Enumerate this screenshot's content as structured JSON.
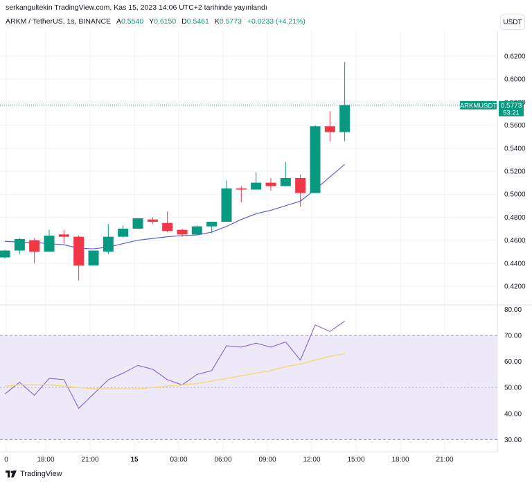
{
  "header": {
    "attribution": "serkangultekin TradingView.com, Kas 15, 2023 14:06 UTC+2 tarihinde yayınlandı",
    "symbol": "ARKM / TetherUS, 1s, BINANCE",
    "ohlc": [
      {
        "key": "A",
        "value": "0.5540"
      },
      {
        "key": "Y",
        "value": "0.6150"
      },
      {
        "key": "D",
        "value": "0.5461"
      },
      {
        "key": "K",
        "value": "0.5773"
      }
    ],
    "change": "+0.0233 (+4.21%)",
    "currency": "USDT"
  },
  "footer": {
    "logo_text": "TradingView"
  },
  "colors": {
    "up": "#089981",
    "down": "#f23645",
    "ma": "#5b5ed6",
    "rsi": "#7e57c2",
    "rsi_ma": "#f7d774",
    "rsi_band": "#ede9f8"
  },
  "chart_data": [
    {
      "type": "candlestick",
      "x_tick_labels": [
        "0",
        "18:00",
        "21:00",
        "15",
        "03:00",
        "06:00",
        "09:00",
        "12:00",
        "15:00",
        "18:00",
        "21:00"
      ],
      "y_tick_labels": [
        "0.6200",
        "0.6000",
        "0.5800",
        "0.5600",
        "0.5400",
        "0.5200",
        "0.5000",
        "0.4800",
        "0.4600",
        "0.4400",
        "0.4200"
      ],
      "ylim": [
        0.412,
        0.63
      ],
      "last_price_label": {
        "symbol": "ARKMUSDT",
        "price": "0.5773",
        "countdown": "53:21",
        "value": 0.5773
      },
      "candles": [
        {
          "o": 0.445,
          "h": 0.452,
          "l": 0.444,
          "c": 0.451
        },
        {
          "o": 0.451,
          "h": 0.462,
          "l": 0.448,
          "c": 0.461
        },
        {
          "o": 0.46,
          "h": 0.462,
          "l": 0.44,
          "c": 0.45
        },
        {
          "o": 0.45,
          "h": 0.469,
          "l": 0.45,
          "c": 0.464
        },
        {
          "o": 0.465,
          "h": 0.469,
          "l": 0.457,
          "c": 0.463
        },
        {
          "o": 0.463,
          "h": 0.464,
          "l": 0.425,
          "c": 0.438
        },
        {
          "o": 0.438,
          "h": 0.451,
          "l": 0.438,
          "c": 0.451
        },
        {
          "o": 0.45,
          "h": 0.474,
          "l": 0.448,
          "c": 0.463
        },
        {
          "o": 0.463,
          "h": 0.473,
          "l": 0.462,
          "c": 0.47
        },
        {
          "o": 0.47,
          "h": 0.479,
          "l": 0.47,
          "c": 0.479
        },
        {
          "o": 0.478,
          "h": 0.48,
          "l": 0.474,
          "c": 0.476
        },
        {
          "o": 0.475,
          "h": 0.485,
          "l": 0.467,
          "c": 0.468
        },
        {
          "o": 0.469,
          "h": 0.47,
          "l": 0.463,
          "c": 0.465
        },
        {
          "o": 0.465,
          "h": 0.473,
          "l": 0.465,
          "c": 0.472
        },
        {
          "o": 0.472,
          "h": 0.476,
          "l": 0.466,
          "c": 0.476
        },
        {
          "o": 0.476,
          "h": 0.512,
          "l": 0.476,
          "c": 0.505
        },
        {
          "o": 0.505,
          "h": 0.507,
          "l": 0.493,
          "c": 0.504
        },
        {
          "o": 0.504,
          "h": 0.519,
          "l": 0.504,
          "c": 0.51
        },
        {
          "o": 0.51,
          "h": 0.514,
          "l": 0.503,
          "c": 0.507
        },
        {
          "o": 0.507,
          "h": 0.528,
          "l": 0.507,
          "c": 0.514
        },
        {
          "o": 0.514,
          "h": 0.517,
          "l": 0.489,
          "c": 0.501
        },
        {
          "o": 0.501,
          "h": 0.56,
          "l": 0.501,
          "c": 0.559
        },
        {
          "o": 0.559,
          "h": 0.572,
          "l": 0.546,
          "c": 0.554
        },
        {
          "o": 0.554,
          "h": 0.615,
          "l": 0.5461,
          "c": 0.5773
        }
      ],
      "moving_average": [
        0.459,
        0.4585,
        0.458,
        0.457,
        0.456,
        0.453,
        0.4525,
        0.454,
        0.457,
        0.46,
        0.4615,
        0.463,
        0.464,
        0.4645,
        0.467,
        0.472,
        0.478,
        0.483,
        0.486,
        0.49,
        0.494,
        0.504,
        0.515,
        0.526
      ],
      "grid": true
    },
    {
      "type": "line",
      "name": "RSI",
      "y_tick_labels": [
        "80.00",
        "70.00",
        "60.00",
        "50.00",
        "40.00",
        "30.00"
      ],
      "ylim": [
        28,
        82
      ],
      "bands": [
        30,
        70
      ],
      "series": [
        {
          "key": "rsi",
          "values": [
            47.5,
            52.0,
            47.0,
            53.5,
            53.0,
            42.0,
            47.5,
            53.0,
            55.5,
            58.5,
            57.0,
            53.0,
            51.0,
            55.0,
            56.5,
            66.0,
            65.5,
            67.0,
            65.5,
            67.5,
            60.5,
            74.0,
            71.5,
            75.5
          ]
        },
        {
          "key": "rsi_ma",
          "values": [
            50.5,
            51.0,
            51.0,
            51.0,
            50.5,
            50.0,
            49.5,
            49.5,
            49.5,
            49.5,
            50.0,
            50.5,
            51.0,
            51.5,
            52.5,
            53.5,
            54.5,
            55.5,
            56.5,
            58.0,
            59.0,
            60.5,
            62.0,
            63.0
          ]
        }
      ]
    }
  ]
}
